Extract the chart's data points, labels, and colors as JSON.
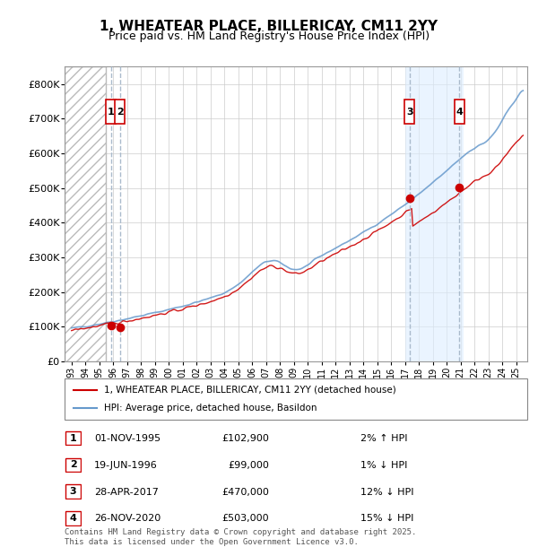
{
  "title_line1": "1, WHEATEAR PLACE, BILLERICAY, CM11 2YY",
  "title_line2": "Price paid vs. HM Land Registry's House Price Index (HPI)",
  "ylabel_ticks": [
    "£0",
    "£100K",
    "£200K",
    "£300K",
    "£400K",
    "£500K",
    "£600K",
    "£700K",
    "£800K"
  ],
  "ytick_vals": [
    0,
    100000,
    200000,
    300000,
    400000,
    500000,
    600000,
    700000,
    800000
  ],
  "ylim": [
    0,
    850000
  ],
  "xlim_start": 1992.5,
  "xlim_end": 2025.8,
  "x_ticks": [
    1993,
    1994,
    1995,
    1996,
    1997,
    1998,
    1999,
    2000,
    2001,
    2002,
    2003,
    2004,
    2005,
    2006,
    2007,
    2008,
    2009,
    2010,
    2011,
    2012,
    2013,
    2014,
    2015,
    2016,
    2017,
    2018,
    2019,
    2020,
    2021,
    2022,
    2023,
    2024,
    2025
  ],
  "hatch_region_end": 1995.5,
  "sale_events": [
    {
      "num": 1,
      "year": 1995.83,
      "price": 102900,
      "label": "1",
      "color": "#cc0000"
    },
    {
      "num": 2,
      "year": 1996.47,
      "price": 99000,
      "label": "2",
      "color": "#cc0000"
    },
    {
      "num": 3,
      "year": 2017.33,
      "price": 470000,
      "label": "3",
      "color": "#cc0000"
    },
    {
      "num": 4,
      "year": 2020.91,
      "price": 503000,
      "label": "4",
      "color": "#cc0000"
    }
  ],
  "legend_line1": "1, WHEATEAR PLACE, BILLERICAY, CM11 2YY (detached house)",
  "legend_line2": "HPI: Average price, detached house, Basildon",
  "table_rows": [
    {
      "num": "1",
      "date": "01-NOV-1995",
      "price": "£102,900",
      "pct": "2% ↑ HPI"
    },
    {
      "num": "2",
      "date": "19-JUN-1996",
      "price": "£99,000",
      "pct": "1% ↓ HPI"
    },
    {
      "num": "3",
      "date": "28-APR-2017",
      "price": "£470,000",
      "pct": "12% ↓ HPI"
    },
    {
      "num": "4",
      "date": "26-NOV-2020",
      "price": "£503,000",
      "pct": "15% ↓ HPI"
    }
  ],
  "footnote": "Contains HM Land Registry data © Crown copyright and database right 2025.\nThis data is licensed under the Open Government Licence v3.0.",
  "red_color": "#cc0000",
  "blue_color": "#6699cc",
  "grid_color": "#cccccc",
  "hatch_color": "#dddddd",
  "bg_highlight_color": "#ddeeff",
  "dashed_line_color": "#aabbcc"
}
